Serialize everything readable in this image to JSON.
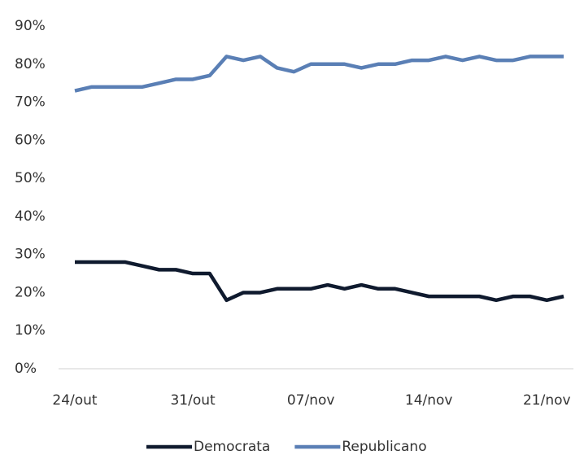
{
  "chart_data": {
    "type": "line",
    "categories": [
      "24/out",
      null,
      null,
      null,
      null,
      null,
      null,
      "31/out",
      null,
      null,
      null,
      null,
      null,
      null,
      "07/nov",
      null,
      null,
      null,
      null,
      null,
      null,
      "14/nov",
      null,
      null,
      null,
      null,
      null,
      null,
      "21/nov",
      null
    ],
    "series": [
      {
        "name": "Democrata",
        "color": "#0f1a2e",
        "values": [
          28,
          28,
          28,
          28,
          27,
          26,
          26,
          25,
          25,
          18,
          20,
          20,
          21,
          21,
          21,
          22,
          21,
          22,
          21,
          21,
          20,
          19,
          19,
          19,
          19,
          18,
          19,
          19,
          18,
          19
        ]
      },
      {
        "name": "Republicano",
        "color": "#5a7fb5",
        "values": [
          73,
          74,
          74,
          74,
          74,
          75,
          76,
          76,
          77,
          82,
          81,
          82,
          79,
          78,
          80,
          80,
          80,
          79,
          80,
          80,
          81,
          81,
          82,
          81,
          82,
          81,
          81,
          82,
          82,
          82
        ]
      }
    ],
    "ylim": [
      0,
      90
    ],
    "yticks": [
      {
        "value": 0,
        "label": "0%"
      },
      {
        "value": 10,
        "label": "10%"
      },
      {
        "value": 20,
        "label": "20%"
      },
      {
        "value": 30,
        "label": "30%"
      },
      {
        "value": 40,
        "label": "40%"
      },
      {
        "value": 50,
        "label": "50%"
      },
      {
        "value": 60,
        "label": "60%"
      },
      {
        "value": 70,
        "label": "70%"
      },
      {
        "value": 80,
        "label": "80%"
      },
      {
        "value": 90,
        "label": "90%"
      }
    ],
    "grid": false,
    "legend": "bottom"
  }
}
